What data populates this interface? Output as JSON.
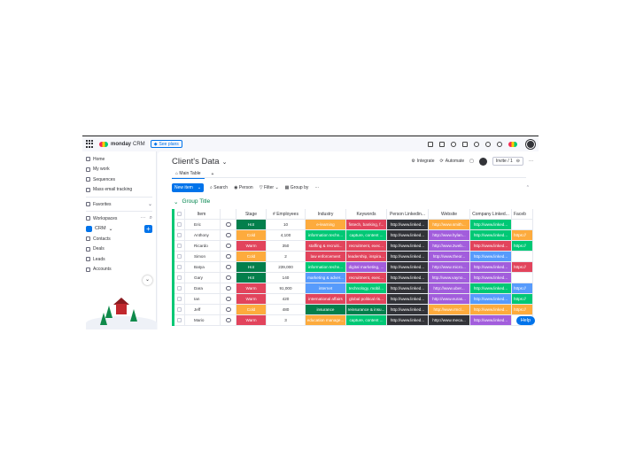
{
  "topbar": {
    "brand": "monday",
    "product": "CRM",
    "see_plans": "See plans"
  },
  "sidebar": {
    "items": [
      "Home",
      "My work",
      "Sequences",
      "Mass email tracking"
    ],
    "favorites": "Favorites",
    "workspaces": "Workspaces",
    "workspace_name": "CRM",
    "board_items": [
      "Contacts",
      "Deals",
      "Leads",
      "Accounts"
    ]
  },
  "board": {
    "title": "Client's Data",
    "tab_main": "Main Table",
    "integrate": "Integrate",
    "automate": "Automate",
    "invite": "Invite / 1",
    "new_item": "New item",
    "search": "Search",
    "person": "Person",
    "filter": "Filter",
    "group_by": "Group by",
    "group_title": "Group Title",
    "help": "Help"
  },
  "columns": [
    "Item",
    "Stage",
    "# Employees",
    "Industry",
    "Keywords",
    "Person Linkedin...",
    "Website",
    "Company Linked...",
    "Faceb"
  ],
  "colors": {
    "hot": "#037f4c",
    "cold": "#fdab3d",
    "warm": "#e2445c",
    "group": "#00c875",
    "accent": "#0073ea"
  },
  "rows": [
    {
      "item": "Eric",
      "stage": "Hot",
      "stage_color": "#037f4c",
      "employees": "10",
      "industry": "e-learning",
      "industry_color": "#fdab3d",
      "keywords": "fintech, banking, f...",
      "keywords_color": "#e2445c",
      "linkedin": "http://www.linked...",
      "website": "http://www.smith...",
      "website_color": "#fdab3d",
      "company": "http://www.linked...",
      "company_color": "#00c875",
      "facebook": "",
      "facebook_color": "#ffffff"
    },
    {
      "item": "Anthony",
      "stage": "Cold",
      "stage_color": "#fdab3d",
      "employees": "4,100",
      "industry": "information techn...",
      "industry_color": "#00c875",
      "keywords": "capture, content ...",
      "keywords_color": "#00c875",
      "linkedin": "http://www.linked...",
      "website": "http://www.hylan...",
      "website_color": "#a25ddc",
      "company": "http://www.linked...",
      "company_color": "#00c875",
      "facebook": "https://",
      "facebook_color": "#fdab3d"
    },
    {
      "item": "Ricardo",
      "stage": "Warm",
      "stage_color": "#e2445c",
      "employees": "350",
      "industry": "staffing & recruiti...",
      "industry_color": "#e2445c",
      "keywords": "recruitment, exec...",
      "keywords_color": "#e2445c",
      "linkedin": "http://www.linked...",
      "website": "http://www.2web...",
      "website_color": "#a25ddc",
      "company": "http://www.linked...",
      "company_color": "#e2445c",
      "facebook": "https://",
      "facebook_color": "#00c875"
    },
    {
      "item": "Simon",
      "stage": "Cold",
      "stage_color": "#fdab3d",
      "employees": "2",
      "industry": "law enforcement",
      "industry_color": "#e2445c",
      "keywords": "leadership, inspira...",
      "keywords_color": "#e2445c",
      "linkedin": "http://www.linked...",
      "website": "http://www.theor...",
      "website_color": "#a25ddc",
      "company": "http://www.linked...",
      "company_color": "#579bfc",
      "facebook": "",
      "facebook_color": "#ffffff"
    },
    {
      "item": "Batya",
      "stage": "Hot",
      "stage_color": "#037f4c",
      "employees": "239,000",
      "industry": "information techn...",
      "industry_color": "#00c875",
      "keywords": "digital marketing, ...",
      "keywords_color": "#a25ddc",
      "linkedin": "http://www.linked...",
      "website": "http://www.micro...",
      "website_color": "#a25ddc",
      "company": "http://www.linked...",
      "company_color": "#a25ddc",
      "facebook": "https://",
      "facebook_color": "#e2445c"
    },
    {
      "item": "Gary",
      "stage": "Hot",
      "stage_color": "#037f4c",
      "employees": "140",
      "industry": "marketing & adver...",
      "industry_color": "#579bfc",
      "keywords": "recruitment, exec...",
      "keywords_color": "#e2445c",
      "linkedin": "http://www.linked...",
      "website": "http://www.vayno...",
      "website_color": "#a25ddc",
      "company": "http://www.linked...",
      "company_color": "#a25ddc",
      "facebook": "",
      "facebook_color": "#ffffff"
    },
    {
      "item": "Dara",
      "stage": "Warm",
      "stage_color": "#e2445c",
      "employees": "91,000",
      "industry": "internet",
      "industry_color": "#579bfc",
      "keywords": "technology, mobil...",
      "keywords_color": "#00c875",
      "linkedin": "http://www.linked...",
      "website": "http://www.uber...",
      "website_color": "#a25ddc",
      "company": "http://www.linked...",
      "company_color": "#00c875",
      "facebook": "https://",
      "facebook_color": "#579bfc"
    },
    {
      "item": "Ian",
      "stage": "Warm",
      "stage_color": "#e2445c",
      "employees": "420",
      "industry": "international affairs",
      "industry_color": "#e2445c",
      "keywords": "global political ris...",
      "keywords_color": "#e2445c",
      "linkedin": "http://www.linked...",
      "website": "http://www.euras...",
      "website_color": "#a25ddc",
      "company": "http://www.linked...",
      "company_color": "#579bfc",
      "facebook": "https://",
      "facebook_color": "#00c875"
    },
    {
      "item": "Jeff",
      "stage": "Cold",
      "stage_color": "#fdab3d",
      "employees": "480",
      "industry": "insurance",
      "industry_color": "#037f4c",
      "keywords": "reinsurance & insu...",
      "keywords_color": "#037f4c",
      "linkedin": "http://www.linked...",
      "website": "http://www.rmcl...",
      "website_color": "#fdab3d",
      "company": "http://www.linked...",
      "company_color": "#fdab3d",
      "facebook": "https://",
      "facebook_color": "#fdab3d"
    },
    {
      "item": "Mario",
      "stage": "Warm",
      "stage_color": "#e2445c",
      "employees": "3",
      "industry": "education manage...",
      "industry_color": "#fdab3d",
      "keywords": "capture, content ...",
      "keywords_color": "#00c875",
      "linkedin": "http://www.linked...",
      "website": "http://www.meca...",
      "website_color": "#323338",
      "company": "http://www.linked...",
      "company_color": "#a25ddc",
      "facebook": "",
      "facebook_color": "#ffffff"
    }
  ]
}
